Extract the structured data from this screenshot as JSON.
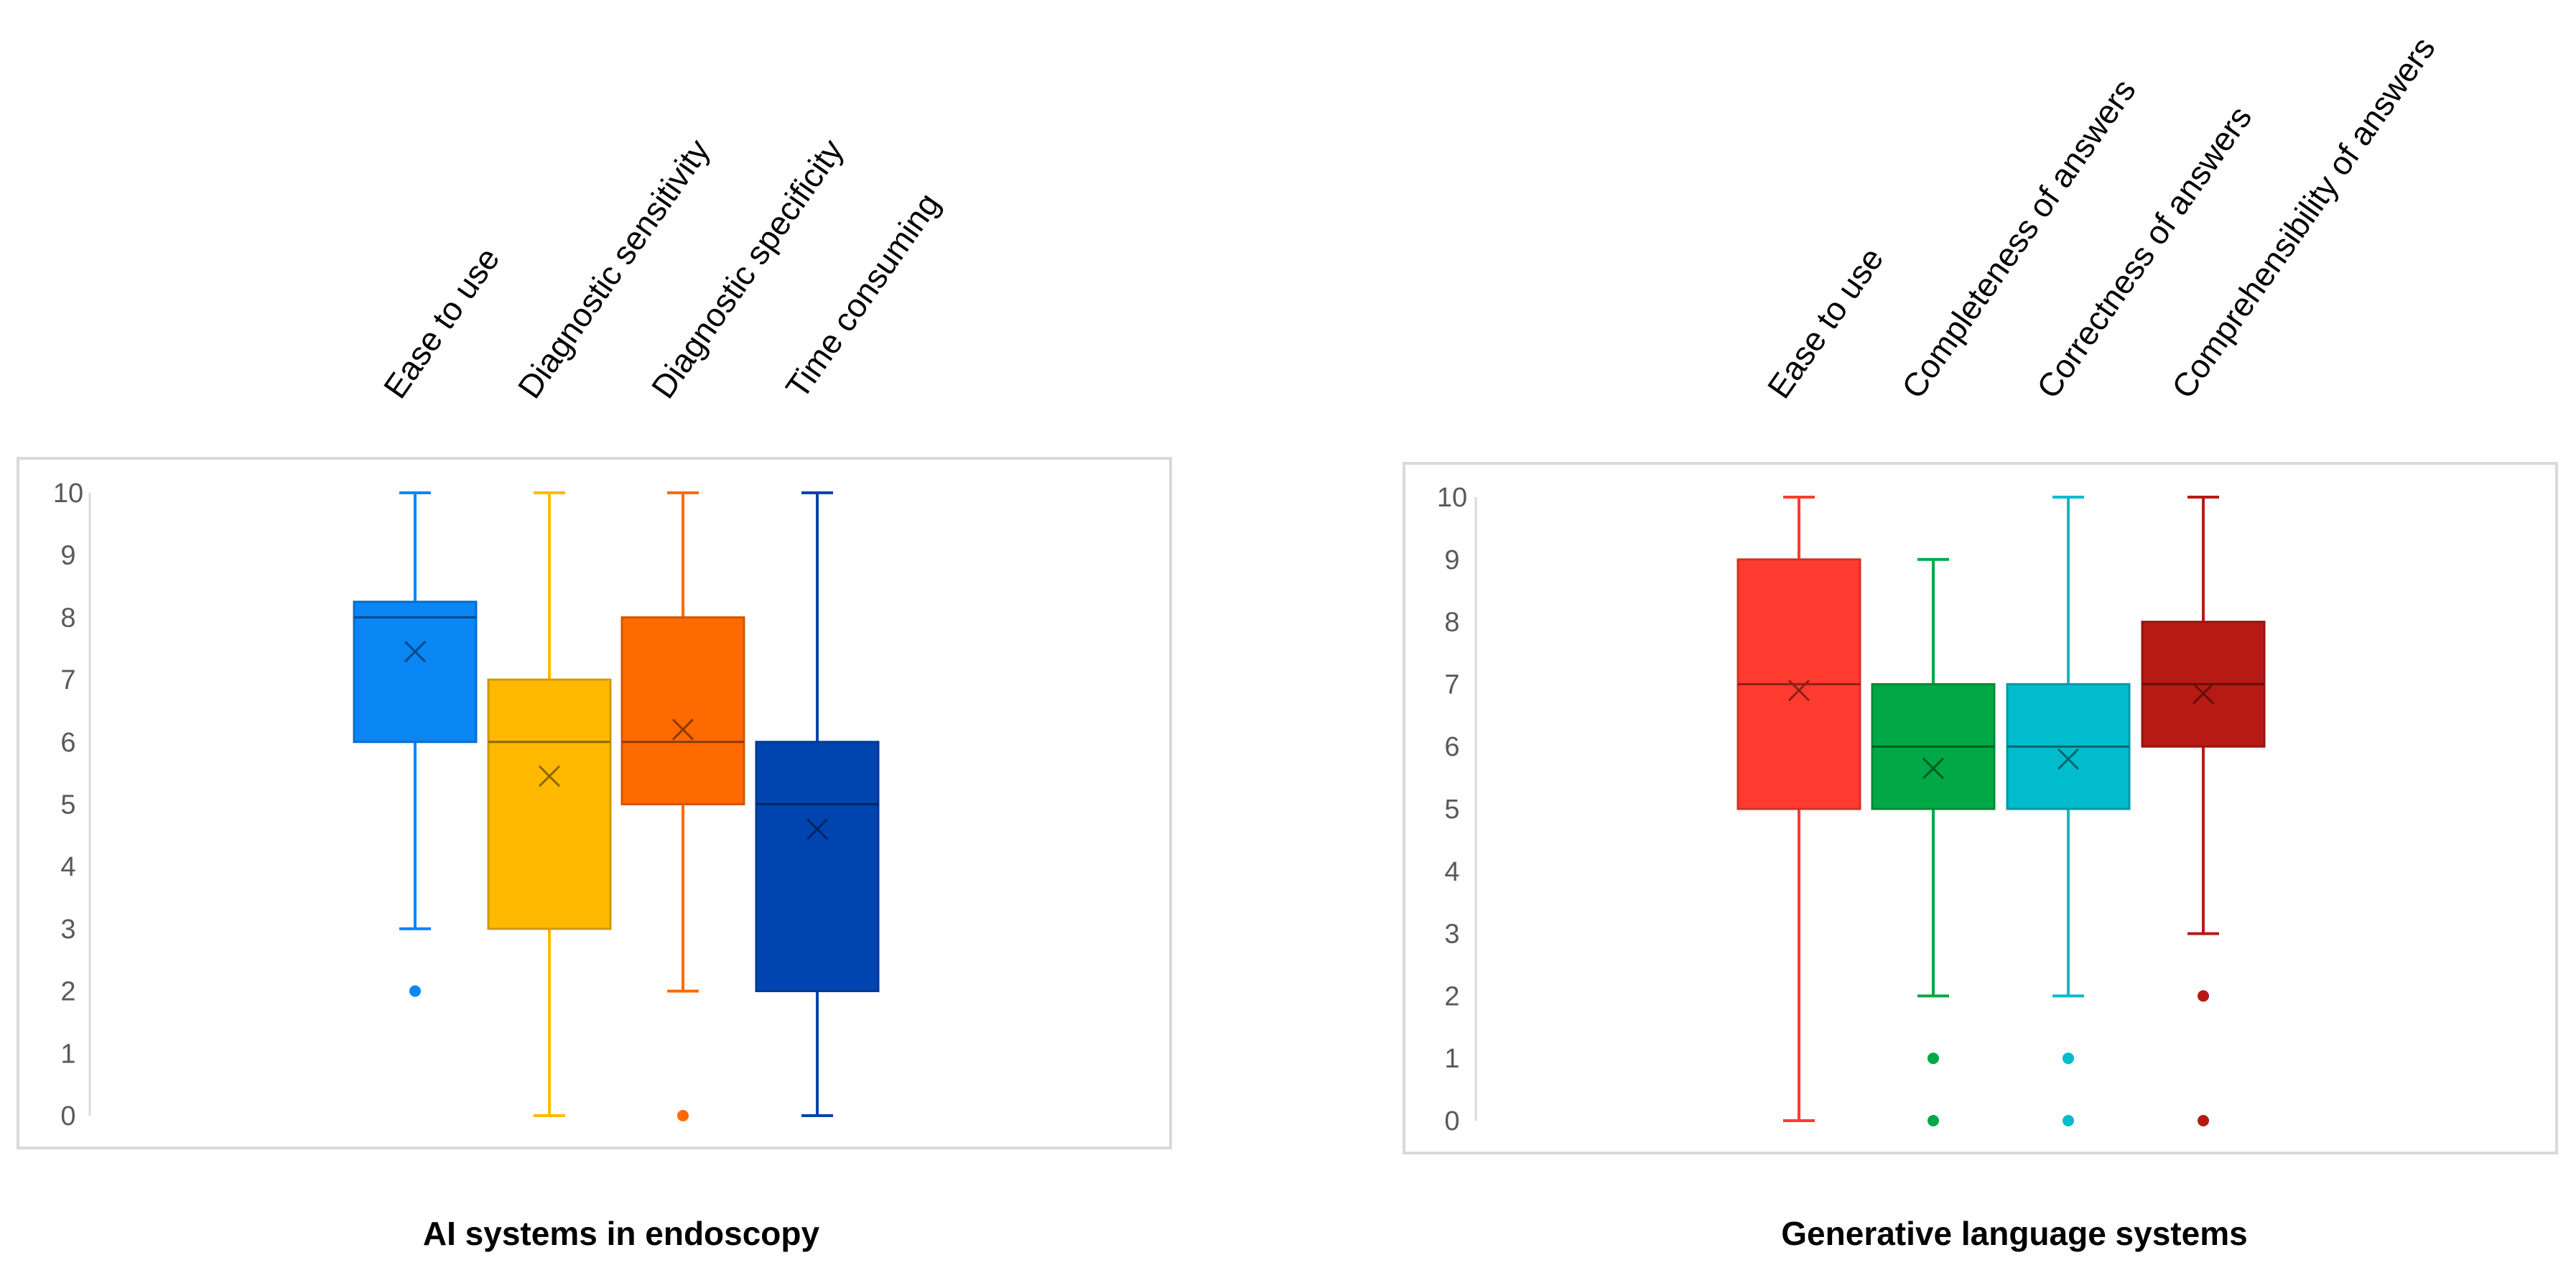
{
  "chart_data": [
    {
      "type": "box",
      "title": "AI systems in endoscopy",
      "ylim": [
        0,
        10
      ],
      "yticks": [
        0,
        1,
        2,
        3,
        4,
        5,
        6,
        7,
        8,
        9,
        10
      ],
      "grid": false,
      "series": [
        {
          "name": "Ease to use",
          "color": "#0A86F5",
          "min": 3,
          "q1": 6,
          "median": 8,
          "q3": 8.25,
          "max": 10,
          "mean": 7.45,
          "outliers": [
            2
          ]
        },
        {
          "name": "Diagnostic sensitivity",
          "color": "#FFB900",
          "min": 0,
          "q1": 3,
          "median": 6,
          "q3": 7,
          "max": 10,
          "mean": 5.45,
          "outliers": []
        },
        {
          "name": "Diagnostic specificity",
          "color": "#FF6A00",
          "min": 2,
          "q1": 5,
          "median": 6,
          "q3": 8,
          "max": 10,
          "mean": 6.2,
          "outliers": [
            0
          ]
        },
        {
          "name": "Time consuming",
          "color": "#0044B0",
          "min": 0,
          "q1": 2,
          "median": 5,
          "q3": 6,
          "max": 10,
          "mean": 4.6,
          "outliers": []
        }
      ]
    },
    {
      "type": "box",
      "title": "Generative language systems",
      "ylim": [
        0,
        10
      ],
      "yticks": [
        0,
        1,
        2,
        3,
        4,
        5,
        6,
        7,
        8,
        9,
        10
      ],
      "grid": false,
      "series": [
        {
          "name": "Ease to use",
          "color": "#FF3B30",
          "min": 0,
          "q1": 5,
          "median": 7,
          "q3": 9,
          "max": 10,
          "mean": 6.9,
          "outliers": []
        },
        {
          "name": "Completeness of answers",
          "color": "#00A846",
          "min": 2,
          "q1": 5,
          "median": 6,
          "q3": 7,
          "max": 9,
          "mean": 5.65,
          "outliers": [
            1,
            0
          ]
        },
        {
          "name": "Correctness of answers",
          "color": "#00BCCC",
          "min": 2,
          "q1": 5,
          "median": 6,
          "q3": 7,
          "max": 10,
          "mean": 5.8,
          "outliers": [
            1,
            0
          ]
        },
        {
          "name": "Comprehensibility of answers",
          "color": "#B71A14",
          "min": 3,
          "q1": 6,
          "median": 7,
          "q3": 8,
          "max": 10,
          "mean": 6.85,
          "outliers": [
            2,
            0
          ]
        }
      ]
    }
  ]
}
